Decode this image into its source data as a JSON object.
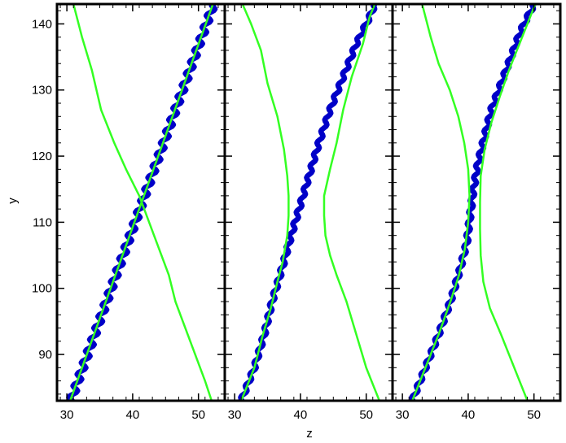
{
  "chart_data": {
    "type": "line",
    "xlabel": "z",
    "ylabel": "y",
    "ylim": [
      83,
      143
    ],
    "yticks": [
      90,
      100,
      110,
      120,
      130,
      140
    ],
    "colors": {
      "thick_line": "#0000c8",
      "thin_line": "#33ff22",
      "frame": "#000000"
    },
    "panels": [
      {
        "xlim": [
          28.5,
          54
        ],
        "xticks": [
          30,
          40,
          50
        ],
        "series": [
          {
            "style": "thick",
            "wiggle": 0.5,
            "points": [
              [
                30.6,
                83
              ],
              [
                52.3,
                143
              ]
            ]
          },
          {
            "style": "thin",
            "wiggle": 0,
            "points": [
              [
                30.5,
                83
              ],
              [
                52.2,
                143
              ]
            ]
          },
          {
            "style": "thin",
            "wiggle": 0,
            "points": [
              [
                31.0,
                143
              ],
              [
                32.3,
                138
              ],
              [
                33.8,
                133
              ],
              [
                35.2,
                127
              ],
              [
                37.2,
                122
              ],
              [
                39.0,
                118
              ],
              [
                41.0,
                114
              ],
              [
                42.5,
                110
              ],
              [
                44.0,
                106
              ],
              [
                45.5,
                102
              ],
              [
                46.5,
                98
              ],
              [
                48.0,
                94
              ],
              [
                49.5,
                90
              ],
              [
                51.0,
                86
              ],
              [
                52.0,
                83
              ]
            ]
          }
        ]
      },
      {
        "xlim": [
          28.5,
          54
        ],
        "xticks": [
          30,
          40,
          50
        ],
        "series": [
          {
            "style": "thick",
            "wiggle": 0.3,
            "points": [
              [
                31.0,
                83
              ],
              [
                33.0,
                88
              ],
              [
                34.5,
                93
              ],
              [
                35.7,
                98
              ],
              [
                37.2,
                103
              ],
              [
                38.6,
                108
              ],
              [
                39.8,
                112
              ],
              [
                41.3,
                117
              ],
              [
                42.8,
                122
              ],
              [
                44.5,
                127
              ],
              [
                46.5,
                132
              ],
              [
                48.5,
                137
              ],
              [
                50.5,
                141
              ],
              [
                51.3,
                143
              ]
            ]
          },
          {
            "style": "thin",
            "wiggle": 0,
            "points": [
              [
                31.0,
                83
              ],
              [
                33.0,
                88
              ],
              [
                34.3,
                93
              ],
              [
                35.5,
                97
              ],
              [
                36.5,
                101
              ],
              [
                37.3,
                104
              ],
              [
                38.0,
                108
              ],
              [
                38.2,
                111
              ],
              [
                38.2,
                114
              ],
              [
                38.0,
                117
              ],
              [
                37.5,
                121
              ],
              [
                36.5,
                126
              ],
              [
                35.0,
                131
              ],
              [
                34.0,
                136
              ],
              [
                32.5,
                140
              ],
              [
                31.2,
                143
              ]
            ]
          },
          {
            "style": "thin",
            "wiggle": 0,
            "points": [
              [
                52.0,
                83
              ],
              [
                50.0,
                88
              ],
              [
                48.5,
                93
              ],
              [
                47.0,
                98
              ],
              [
                45.5,
                102
              ],
              [
                44.5,
                105
              ],
              [
                43.8,
                108
              ],
              [
                43.6,
                111
              ],
              [
                43.6,
                114
              ],
              [
                44.5,
                118
              ],
              [
                45.5,
                122
              ],
              [
                46.5,
                127
              ],
              [
                47.8,
                132
              ],
              [
                49.5,
                137
              ],
              [
                50.5,
                141
              ],
              [
                51.3,
                143
              ]
            ]
          }
        ]
      },
      {
        "xlim": [
          28.5,
          54
        ],
        "xticks": [
          30,
          40,
          50
        ],
        "series": [
          {
            "style": "thick",
            "wiggle": 0.3,
            "points": [
              [
                31.5,
                83
              ],
              [
                33.5,
                88
              ],
              [
                35.5,
                93
              ],
              [
                37.3,
                98
              ],
              [
                38.8,
                103
              ],
              [
                39.8,
                107
              ],
              [
                40.3,
                111
              ],
              [
                40.8,
                115
              ],
              [
                41.5,
                119
              ],
              [
                42.5,
                123
              ],
              [
                43.5,
                127
              ],
              [
                45.0,
                131
              ],
              [
                46.5,
                135
              ],
              [
                48.0,
                139
              ],
              [
                50.0,
                143
              ]
            ]
          },
          {
            "style": "thin",
            "wiggle": 0,
            "points": [
              [
                31.5,
                83
              ],
              [
                33.5,
                88
              ],
              [
                35.5,
                93
              ],
              [
                37.3,
                98
              ],
              [
                38.6,
                102
              ],
              [
                39.5,
                106
              ],
              [
                40.0,
                110
              ],
              [
                40.2,
                114
              ],
              [
                40.0,
                118
              ],
              [
                39.4,
                122
              ],
              [
                38.5,
                126
              ],
              [
                37.2,
                130
              ],
              [
                35.5,
                134
              ],
              [
                34.3,
                138
              ],
              [
                33.0,
                143
              ]
            ]
          },
          {
            "style": "thin",
            "wiggle": 0,
            "points": [
              [
                49.0,
                83
              ],
              [
                47.0,
                88
              ],
              [
                45.0,
                93
              ],
              [
                43.3,
                97
              ],
              [
                42.3,
                101
              ],
              [
                41.9,
                105
              ],
              [
                41.8,
                109
              ],
              [
                41.8,
                113
              ],
              [
                41.9,
                117
              ],
              [
                42.5,
                121
              ],
              [
                43.5,
                125
              ],
              [
                44.8,
                129
              ],
              [
                46.2,
                133
              ],
              [
                47.8,
                137
              ],
              [
                49.0,
                140
              ],
              [
                50.2,
                143
              ]
            ]
          }
        ]
      }
    ]
  }
}
